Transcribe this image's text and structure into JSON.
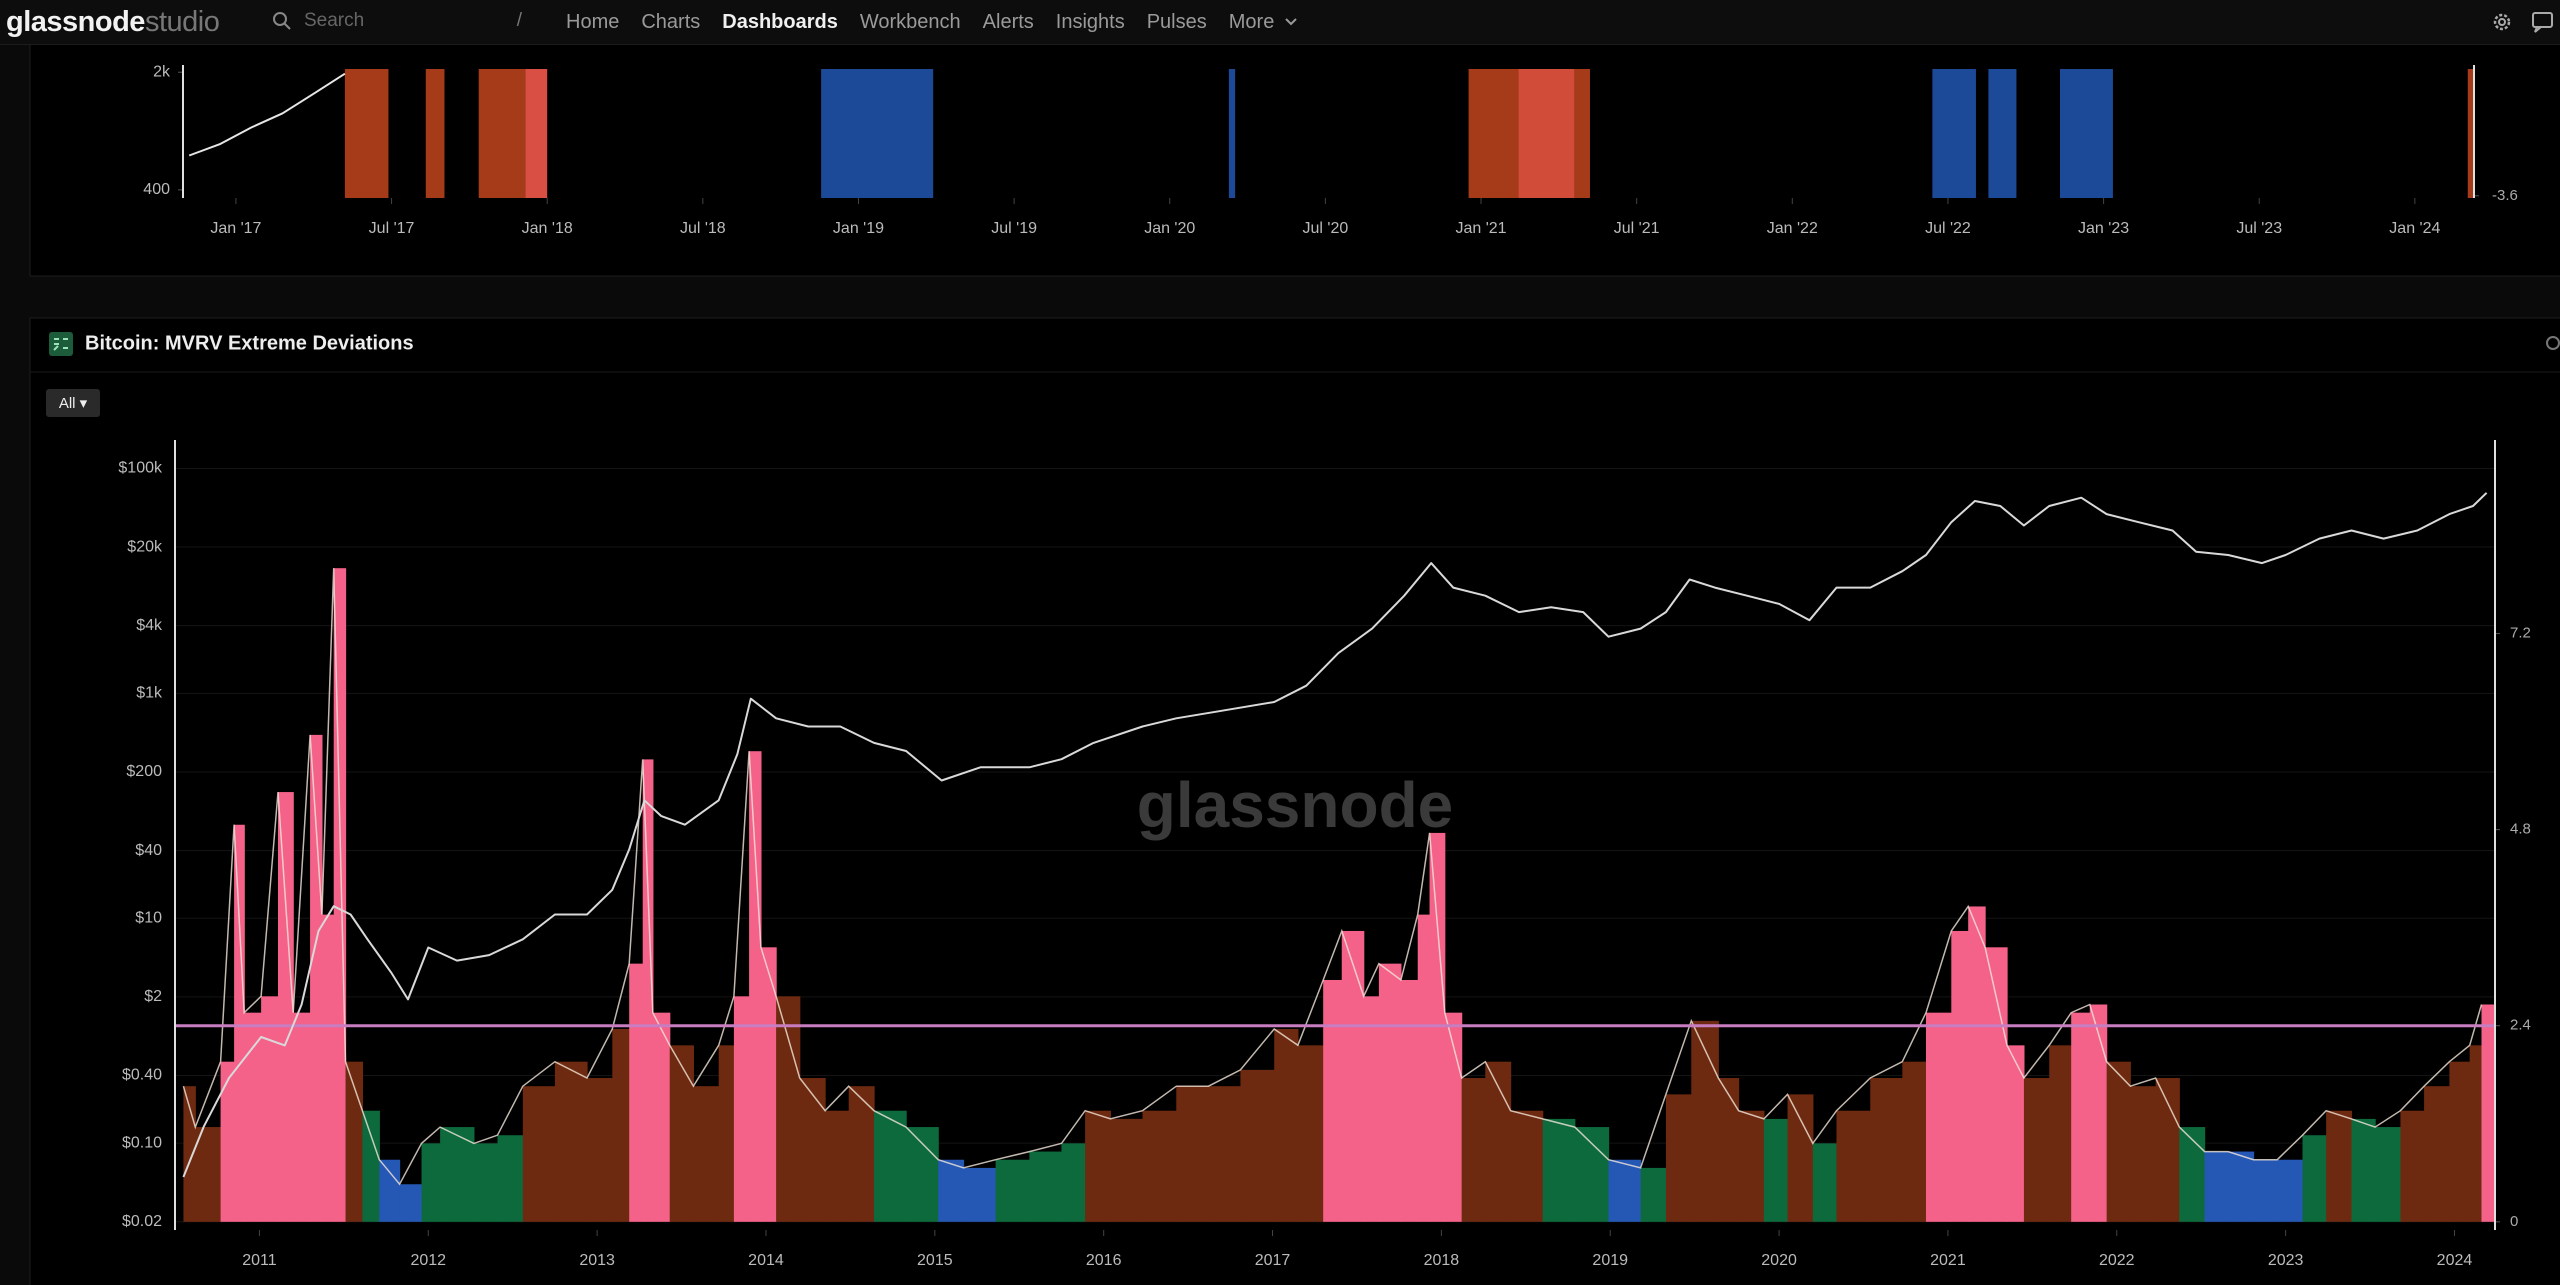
{
  "nav": {
    "logo": "glassnode",
    "logo_suffix": "studio",
    "search": "Search",
    "search_shortcut": "/",
    "items": [
      "Home",
      "Charts",
      "Dashboards",
      "Workbench",
      "Alerts",
      "Insights",
      "Pulses",
      "More"
    ],
    "active": 2
  },
  "chart_data": [
    {
      "type": "line",
      "log_y": true,
      "xlim": [
        2016.83,
        2024.19
      ],
      "xticks": [
        {
          "value": 2017,
          "label": "Jan '17"
        },
        {
          "value": 2017.5,
          "label": "Jul '17"
        },
        {
          "value": 2018,
          "label": "Jan '18"
        },
        {
          "value": 2018.5,
          "label": "Jul '18"
        },
        {
          "value": 2019,
          "label": "Jan '19"
        },
        {
          "value": 2019.5,
          "label": "Jul '19"
        },
        {
          "value": 2020,
          "label": "Jan '20"
        },
        {
          "value": 2020.5,
          "label": "Jul '20"
        },
        {
          "value": 2021,
          "label": "Jan '21"
        },
        {
          "value": 2021.5,
          "label": "Jul '21"
        },
        {
          "value": 2022,
          "label": "Jan '22"
        },
        {
          "value": 2022.5,
          "label": "Jul '22"
        },
        {
          "value": 2023,
          "label": "Jan '23"
        },
        {
          "value": 2023.5,
          "label": "Jul '23"
        },
        {
          "value": 2024,
          "label": "Jan '24"
        }
      ],
      "ylim": [
        358,
        2090
      ],
      "yticks": [
        400,
        {
          "value": 2000,
          "label": "2k"
        }
      ],
      "y2lim": [
        -3.8,
        8
      ],
      "y2ticks": [
        -3.6
      ],
      "grid": false,
      "series": [
        {
          "type": "line",
          "color": "#e6e6e6",
          "x": [
            2016.85,
            2016.95,
            2017.05,
            2017.15,
            2017.25,
            2017.35
          ],
          "values": [
            640,
            750,
            940,
            1140,
            1490,
            1960
          ]
        }
      ],
      "bands": [
        {
          "x0": 2017.35,
          "x1": 2017.49,
          "color": "#b8411c"
        },
        {
          "x0": 2017.61,
          "x1": 2017.67,
          "color": "#b8411c"
        },
        {
          "x0": 2017.78,
          "x1": 2017.93,
          "color": "#b8411c"
        },
        {
          "x0": 2017.93,
          "x1": 2018.0,
          "color": "#f2584a"
        },
        {
          "x0": 2018.88,
          "x1": 2019.24,
          "color": "#1f52a8"
        },
        {
          "x0": 2020.19,
          "x1": 2020.21,
          "color": "#1f52a8"
        },
        {
          "x0": 2020.96,
          "x1": 2021.12,
          "color": "#b8411c"
        },
        {
          "x0": 2021.12,
          "x1": 2021.3,
          "color": "#e9553f"
        },
        {
          "x0": 2021.3,
          "x1": 2021.35,
          "color": "#b8411c"
        },
        {
          "x0": 2022.45,
          "x1": 2022.59,
          "color": "#1f52a8"
        },
        {
          "x0": 2022.63,
          "x1": 2022.72,
          "color": "#1f52a8"
        },
        {
          "x0": 2022.86,
          "x1": 2023.03,
          "color": "#1f52a8"
        },
        {
          "x0": 2024.17,
          "x1": 2024.19,
          "color": "#b8411c"
        }
      ]
    },
    {
      "type": "combo",
      "title": "Bitcoin: MVRV Extreme Deviations",
      "range_button": "All ▾",
      "watermark": "glassnode",
      "log_y": true,
      "xlim": [
        2010.5,
        2024.24
      ],
      "xticks": [
        2011,
        2012,
        2013,
        2014,
        2015,
        2016,
        2017,
        2018,
        2019,
        2020,
        2021,
        2022,
        2023,
        2024
      ],
      "ylim": [
        0.0169,
        165000
      ],
      "yticks": [
        {
          "value": 0.02,
          "label": "$0.02"
        },
        {
          "value": 0.1,
          "label": "$0.10"
        },
        {
          "value": 0.4,
          "label": "$0.40"
        },
        {
          "value": 2,
          "label": "$2"
        },
        {
          "value": 10,
          "label": "$10"
        },
        {
          "value": 40,
          "label": "$40"
        },
        {
          "value": 200,
          "label": "$200"
        },
        {
          "value": 1000,
          "label": "$1k"
        },
        {
          "value": 4000,
          "label": "$4k"
        },
        {
          "value": 20000,
          "label": "$20k"
        },
        {
          "value": 100000,
          "label": "$100k"
        }
      ],
      "y2lim": [
        -0.1,
        9.52
      ],
      "y2ticks": [
        0,
        2.4,
        4.8,
        7.2
      ],
      "threshold": 2.4,
      "threshold_color": "#c77dc0",
      "grid": true,
      "series": [
        {
          "type": "line",
          "color": "#d9d9d9",
          "x": [
            2010.55,
            2010.67,
            2010.82,
            2011.01,
            2011.15,
            2011.25,
            2011.35,
            2011.44,
            2011.54,
            2011.64,
            2011.78,
            2011.88,
            2012.0,
            2012.17,
            2012.36,
            2012.56,
            2012.75,
            2012.94,
            2013.09,
            2013.19,
            2013.28,
            2013.38,
            2013.52,
            2013.72,
            2013.83,
            2013.91,
            2014.06,
            2014.25,
            2014.44,
            2014.64,
            2014.83,
            2015.04,
            2015.27,
            2015.56,
            2015.75,
            2015.94,
            2016.23,
            2016.43,
            2016.72,
            2017.01,
            2017.2,
            2017.39,
            2017.59,
            2017.78,
            2017.94,
            2018.07,
            2018.26,
            2018.46,
            2018.65,
            2018.84,
            2018.99,
            2019.18,
            2019.33,
            2019.47,
            2019.62,
            2019.81,
            2020.0,
            2020.18,
            2020.34,
            2020.54,
            2020.73,
            2020.87,
            2021.02,
            2021.16,
            2021.31,
            2021.45,
            2021.6,
            2021.79,
            2021.94,
            2022.13,
            2022.33,
            2022.47,
            2022.66,
            2022.86,
            2023.0,
            2023.2,
            2023.39,
            2023.58,
            2023.78,
            2023.97,
            2024.11,
            2024.19
          ],
          "values": [
            0.05,
            0.14,
            0.38,
            0.88,
            0.74,
            1.71,
            7.7,
            12.8,
            10.8,
            6.5,
            3.3,
            1.9,
            5.5,
            4.2,
            4.7,
            6.5,
            10.8,
            10.8,
            17.9,
            41,
            112,
            81,
            68,
            112,
            287,
            896,
            600,
            507,
            507,
            363,
            307,
            168,
            220,
            220,
            260,
            363,
            507,
            600,
            708,
            838,
            1170,
            2280,
            3770,
            7380,
            14400,
            8720,
            7380,
            5280,
            5840,
            5280,
            3190,
            3770,
            5280,
            10300,
            8720,
            7380,
            6240,
            4470,
            8720,
            8720,
            12200,
            17000,
            33300,
            51400,
            46400,
            31100,
            46400,
            55000,
            39300,
            33300,
            28100,
            18200,
            17000,
            14400,
            17000,
            23800,
            28100,
            23800,
            28100,
            39300,
            46400,
            60800
          ]
        },
        {
          "type": "bar",
          "axis": "y2",
          "color": "#f3e6da",
          "x": [
            2010.55,
            2010.62,
            2010.77,
            2010.85,
            2010.91,
            2011.01,
            2011.11,
            2011.2,
            2011.3,
            2011.37,
            2011.44,
            2011.51,
            2011.61,
            2011.71,
            2011.83,
            2011.96,
            2012.07,
            2012.27,
            2012.41,
            2012.56,
            2012.75,
            2012.94,
            2013.09,
            2013.19,
            2013.27,
            2013.33,
            2013.43,
            2013.57,
            2013.72,
            2013.81,
            2013.9,
            2013.97,
            2014.06,
            2014.2,
            2014.35,
            2014.49,
            2014.64,
            2014.83,
            2015.02,
            2015.17,
            2015.36,
            2015.56,
            2015.75,
            2015.89,
            2016.04,
            2016.23,
            2016.43,
            2016.62,
            2016.81,
            2017.01,
            2017.15,
            2017.3,
            2017.41,
            2017.54,
            2017.63,
            2017.76,
            2017.86,
            2017.93,
            2018.02,
            2018.12,
            2018.26,
            2018.41,
            2018.6,
            2018.79,
            2018.99,
            2019.18,
            2019.33,
            2019.48,
            2019.64,
            2019.76,
            2019.91,
            2020.05,
            2020.2,
            2020.34,
            2020.54,
            2020.73,
            2020.87,
            2021.02,
            2021.12,
            2021.22,
            2021.35,
            2021.45,
            2021.6,
            2021.73,
            2021.84,
            2021.94,
            2022.08,
            2022.23,
            2022.37,
            2022.52,
            2022.66,
            2022.81,
            2022.95,
            2023.1,
            2023.24,
            2023.39,
            2023.53,
            2023.68,
            2023.82,
            2023.97,
            2024.09,
            2024.16
          ],
          "values": [
            1.66,
            1.16,
            1.96,
            4.86,
            2.56,
            2.76,
            5.26,
            2.56,
            5.96,
            3.76,
            8.0,
            1.96,
            1.36,
            0.76,
            0.46,
            0.96,
            1.16,
            0.96,
            1.06,
            1.66,
            1.96,
            1.76,
            2.36,
            3.16,
            5.66,
            2.56,
            2.16,
            1.66,
            2.16,
            2.76,
            5.76,
            3.36,
            2.76,
            1.76,
            1.36,
            1.66,
            1.36,
            1.16,
            0.76,
            0.66,
            0.76,
            0.86,
            0.96,
            1.36,
            1.26,
            1.36,
            1.66,
            1.66,
            1.86,
            2.36,
            2.16,
            2.96,
            3.56,
            2.76,
            3.16,
            2.96,
            3.76,
            4.76,
            2.56,
            1.76,
            1.96,
            1.36,
            1.26,
            1.16,
            0.76,
            0.66,
            1.56,
            2.46,
            1.76,
            1.36,
            1.26,
            1.56,
            0.96,
            1.36,
            1.76,
            1.96,
            2.56,
            3.56,
            3.86,
            3.36,
            2.16,
            1.76,
            2.16,
            2.56,
            2.66,
            1.96,
            1.66,
            1.76,
            1.16,
            0.86,
            0.86,
            0.76,
            0.76,
            1.06,
            1.36,
            1.26,
            1.16,
            1.36,
            1.66,
            1.96,
            2.16,
            2.66
          ],
          "colors": [
            "#6e2a10",
            "#6e2a10",
            "#f4628a",
            "#f4628a",
            "#f4628a",
            "#f4628a",
            "#f4628a",
            "#f4628a",
            "#f4628a",
            "#f4628a",
            "#f4628a",
            "#6e2a10",
            "#0d6a3c",
            "#2557b5",
            "#2557b5",
            "#0d6a3c",
            "#0d6a3c",
            "#0d6a3c",
            "#0d6a3c",
            "#6e2a10",
            "#6e2a10",
            "#6e2a10",
            "#6e2a10",
            "#f4628a",
            "#f4628a",
            "#f4628a",
            "#6e2a10",
            "#6e2a10",
            "#6e2a10",
            "#f4628a",
            "#f4628a",
            "#f4628a",
            "#6e2a10",
            "#6e2a10",
            "#6e2a10",
            "#6e2a10",
            "#0d6a3c",
            "#0d6a3c",
            "#2557b5",
            "#2557b5",
            "#0d6a3c",
            "#0d6a3c",
            "#0d6a3c",
            "#6e2a10",
            "#6e2a10",
            "#6e2a10",
            "#6e2a10",
            "#6e2a10",
            "#6e2a10",
            "#6e2a10",
            "#6e2a10",
            "#f4628a",
            "#f4628a",
            "#f4628a",
            "#f4628a",
            "#f4628a",
            "#f4628a",
            "#f4628a",
            "#f4628a",
            "#6e2a10",
            "#6e2a10",
            "#6e2a10",
            "#0d6a3c",
            "#0d6a3c",
            "#2557b5",
            "#0d6a3c",
            "#6e2a10",
            "#6e2a10",
            "#6e2a10",
            "#6e2a10",
            "#0d6a3c",
            "#6e2a10",
            "#0d6a3c",
            "#6e2a10",
            "#6e2a10",
            "#6e2a10",
            "#f4628a",
            "#f4628a",
            "#f4628a",
            "#f4628a",
            "#f4628a",
            "#6e2a10",
            "#6e2a10",
            "#f4628a",
            "#f4628a",
            "#6e2a10",
            "#6e2a10",
            "#6e2a10",
            "#0d6a3c",
            "#2557b5",
            "#2557b5",
            "#2557b5",
            "#2557b5",
            "#0d6a3c",
            "#6e2a10",
            "#0d6a3c",
            "#0d6a3c",
            "#6e2a10",
            "#6e2a10",
            "#6e2a10",
            "#6e2a10",
            "#f4628a"
          ]
        }
      ]
    }
  ]
}
